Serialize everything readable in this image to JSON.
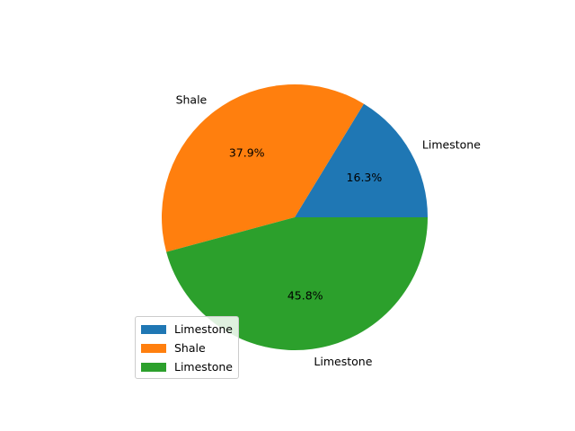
{
  "chart_data": {
    "type": "pie",
    "title": "",
    "slices": [
      {
        "label": "Limestone",
        "value": 16.3,
        "pct_label": "16.3%",
        "color": "#1f77b4"
      },
      {
        "label": "Shale",
        "value": 37.9,
        "pct_label": "37.9%",
        "color": "#ff7f0e"
      },
      {
        "label": "Limestone",
        "value": 45.8,
        "pct_label": "45.8%",
        "color": "#2ca02c"
      }
    ],
    "start_angle_deg": 0,
    "direction": "counterclockwise",
    "legend": {
      "placement": "lower-left",
      "entries": [
        "Limestone",
        "Shale",
        "Limestone"
      ]
    }
  }
}
